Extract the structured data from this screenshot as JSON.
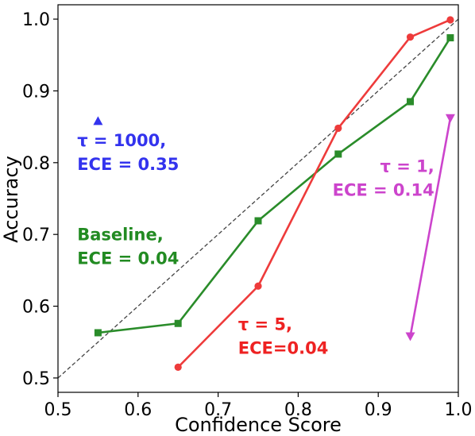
{
  "chart_data": {
    "type": "line",
    "title": "",
    "xlabel": "Confidence Score",
    "ylabel": "Accuracy",
    "xlim": [
      0.5,
      1.0
    ],
    "ylim": [
      0.48,
      1.02
    ],
    "grid": false,
    "x_ticks": [
      "0.5",
      "0.6",
      "0.7",
      "0.8",
      "0.9",
      "1.0"
    ],
    "y_ticks": [
      "0.5",
      "0.6",
      "0.7",
      "0.8",
      "0.9",
      "1.0"
    ],
    "reference_line": {
      "from": [
        0.5,
        0.5
      ],
      "to": [
        1.0,
        1.0
      ],
      "style": "dashed",
      "color": "#444444"
    },
    "series": [
      {
        "color": "#2a8c2a",
        "marker": "square",
        "x": [
          0.55,
          0.65,
          0.75,
          0.85,
          0.94,
          0.99
        ],
        "y": [
          0.563,
          0.576,
          0.719,
          0.812,
          0.885,
          0.974
        ]
      },
      {
        "color": "#ee3b3b",
        "marker": "circle",
        "x": [
          0.65,
          0.75,
          0.85,
          0.94,
          0.99
        ],
        "y": [
          0.515,
          0.628,
          0.848,
          0.975,
          0.999
        ]
      },
      {
        "color": "#cc44cc",
        "marker": "triangle-down",
        "x": [
          0.99,
          0.94
        ],
        "y": [
          0.862,
          0.558
        ]
      },
      {
        "color": "#3333ee",
        "marker": "triangle-up",
        "x": [
          0.55
        ],
        "y": [
          0.858
        ]
      }
    ],
    "annotations": [
      {
        "lines": [
          "τ = 1000,",
          "ECE = 0.35"
        ],
        "color": "#3333ee",
        "x": 0.524,
        "y": 0.823,
        "anchor": "start"
      },
      {
        "lines": [
          "Baseline,",
          "ECE = 0.04"
        ],
        "color": "#228b22",
        "x": 0.524,
        "y": 0.692,
        "anchor": "start"
      },
      {
        "lines": [
          "τ = 5,",
          "ECE=0.04"
        ],
        "color": "#ee2222",
        "x": 0.725,
        "y": 0.567,
        "anchor": "start"
      },
      {
        "lines": [
          "τ = 1,",
          "ECE = 0.14"
        ],
        "color": "#cc44cc",
        "x": 0.97,
        "y": 0.787,
        "anchor": "end"
      }
    ]
  }
}
